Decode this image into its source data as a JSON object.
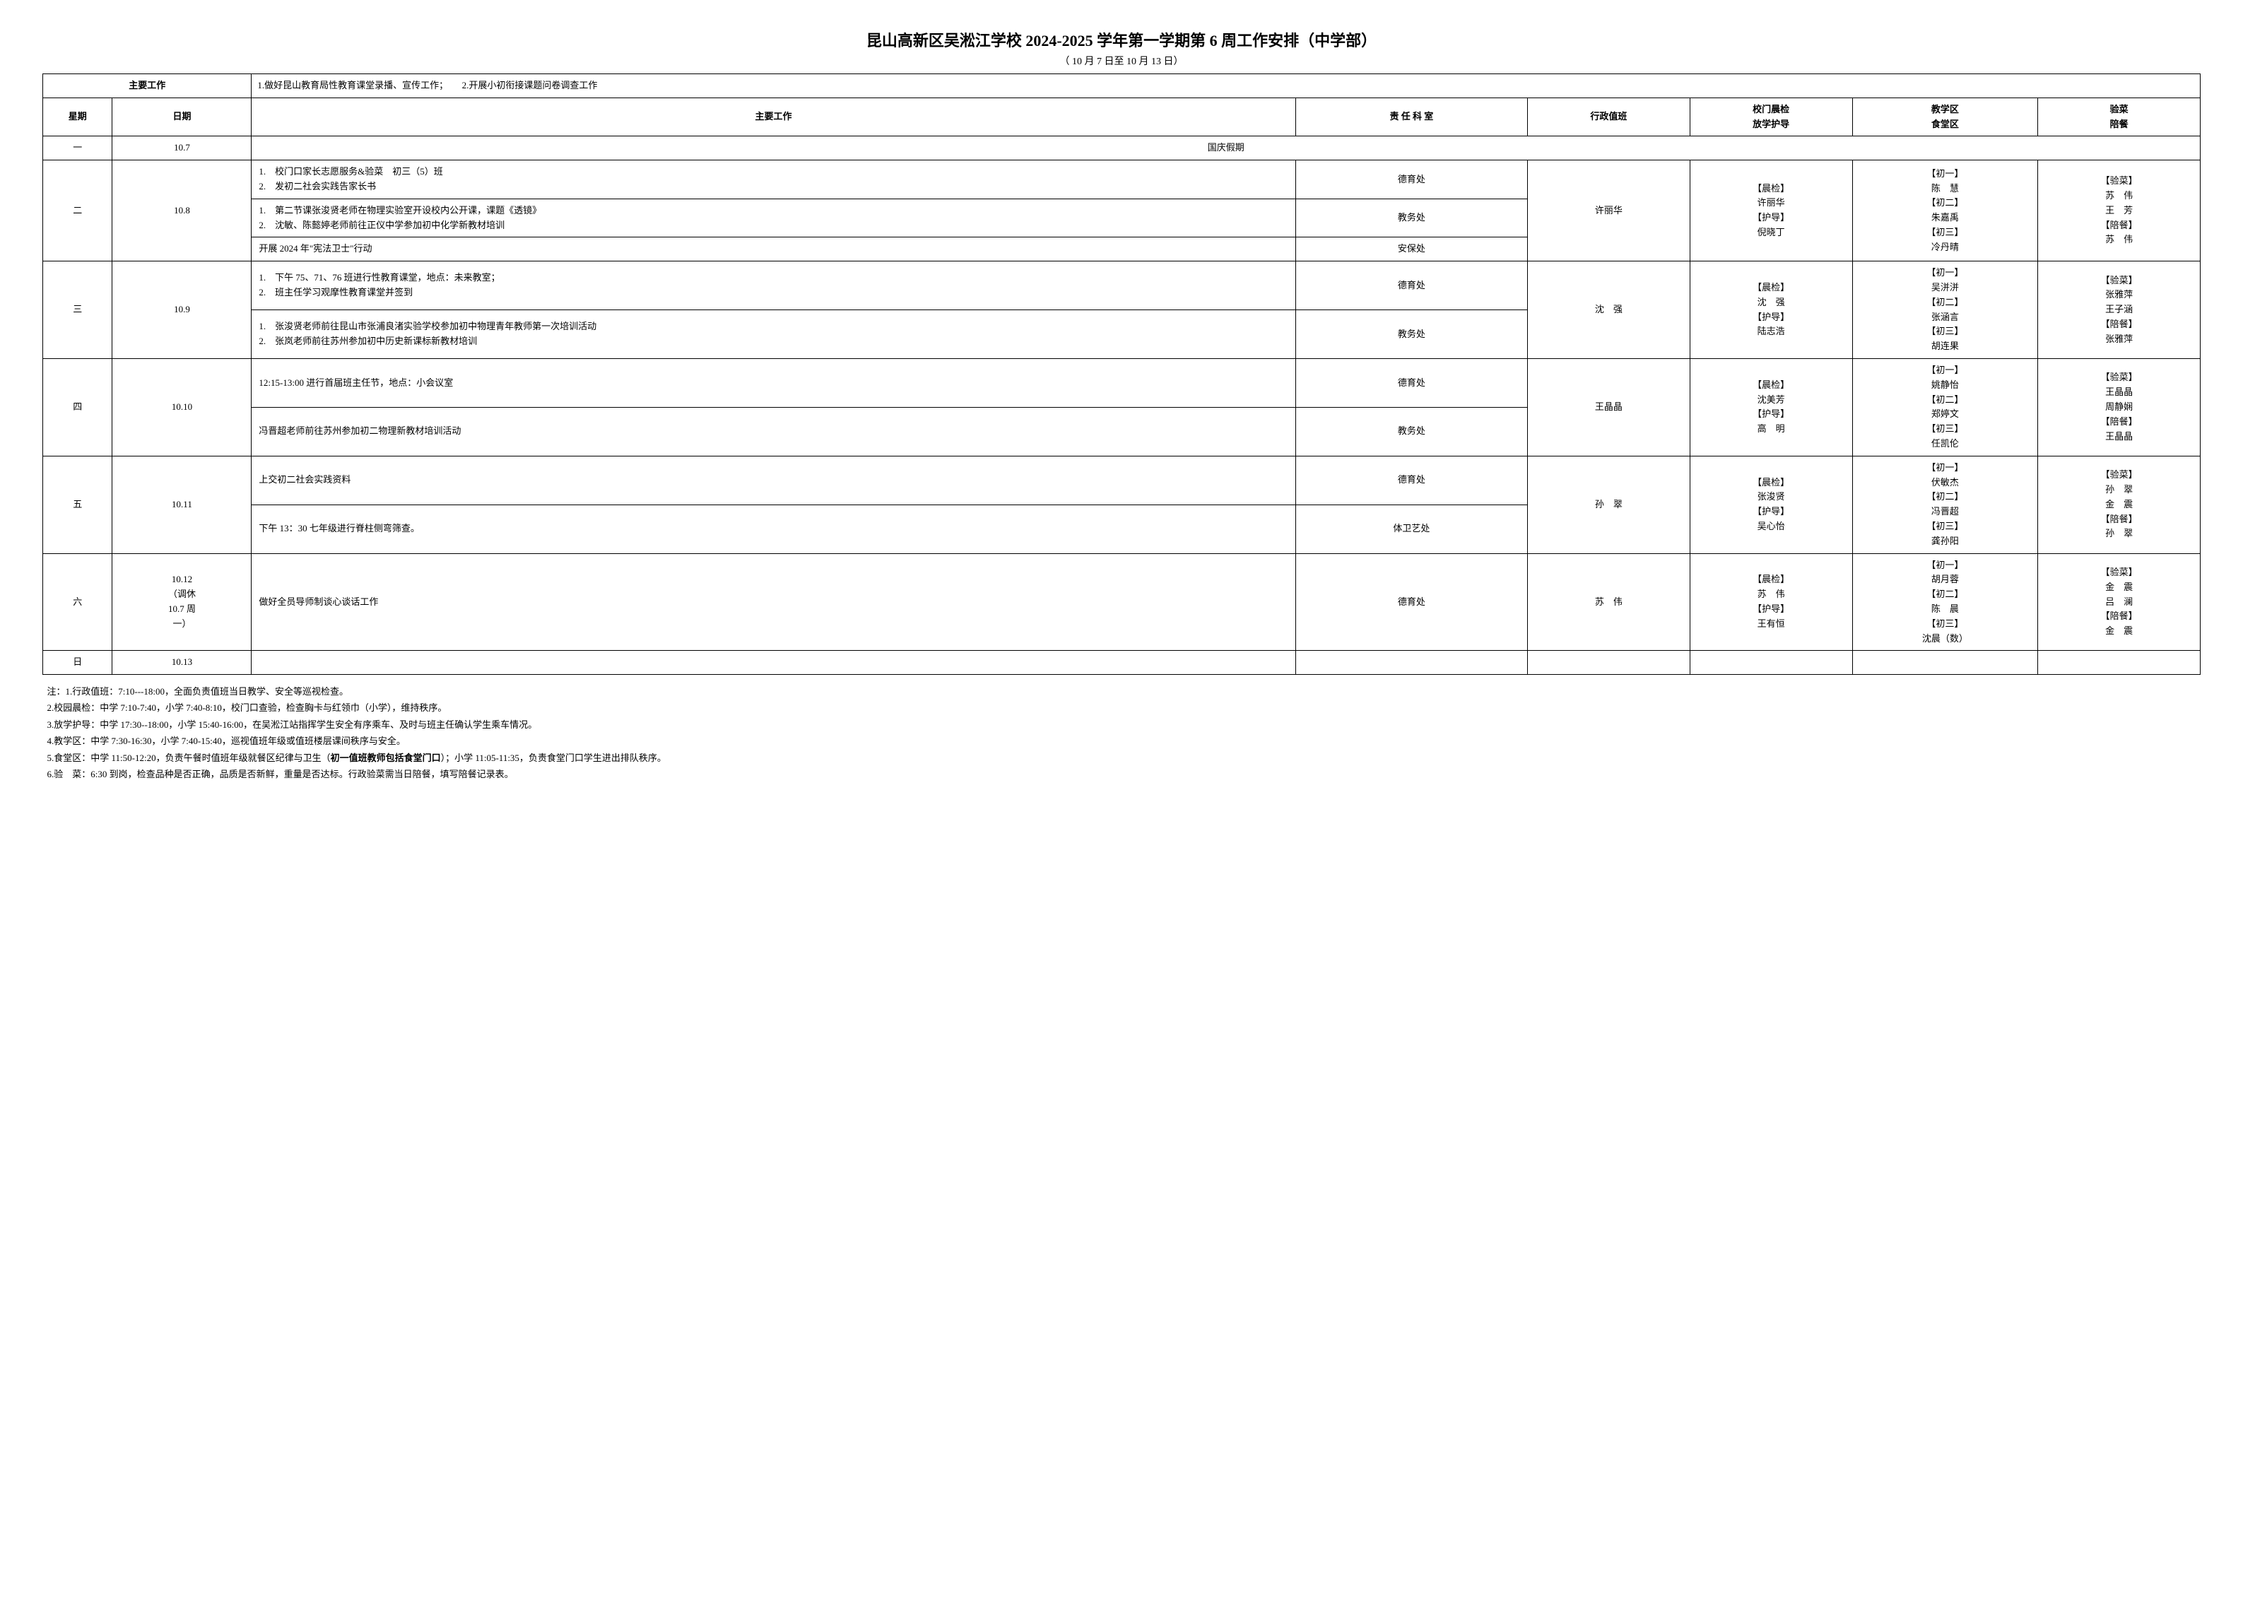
{
  "title": "昆山高新区吴淞江学校 2024-2025 学年第一学期第  6  周工作安排（中学部）",
  "subtitle": "（ 10 月 7 日至 10 月 13 日）",
  "main_work_label": "主要工作",
  "main_work_content": "1.做好昆山教育局性教育课堂录播、宣传工作；　　2.开展小初衔接课题问卷调查工作",
  "headers": {
    "weekday": "星期",
    "date": "日期",
    "work": "主要工作",
    "dept": "责 任 科 室",
    "duty": "行政值班",
    "gate": "校门晨检\n放学护导",
    "zone": "教学区\n食堂区",
    "meal": "验菜\n陪餐"
  },
  "rows": [
    {
      "weekday": "一",
      "date": "10.7",
      "holiday": "国庆假期"
    },
    {
      "weekday": "二",
      "date": "10.8",
      "duty": "许丽华",
      "gate": "【晨检】\n许丽华\n【护导】\n倪晓丁",
      "zone": "【初一】\n陈　慧\n【初二】\n朱嘉禹\n【初三】\n冷丹晴",
      "meal": "【验菜】\n苏　伟\n王　芳\n【陪餐】\n苏　伟",
      "tasks": [
        {
          "items": [
            "1.　校门口家长志愿服务&验菜　初三（5）班",
            "2.　发初二社会实践告家长书"
          ],
          "dept": "德育处"
        },
        {
          "items": [
            "1.　第二节课张浚贤老师在物理实验室开设校内公开课，课题《透镜》",
            "2.　沈敏、陈懿婷老师前往正仪中学参加初中化学新教材培训"
          ],
          "dept": "教务处"
        },
        {
          "items": [
            "开展 2024 年\"宪法卫士\"行动"
          ],
          "dept": "安保处"
        }
      ]
    },
    {
      "weekday": "三",
      "date": "10.9",
      "duty": "沈　强",
      "gate": "【晨检】\n沈　强\n【护导】\n陆志浩",
      "zone": "【初一】\n吴洴洴\n【初二】\n张涵言\n【初三】\n胡连果",
      "meal": "【验菜】\n张雅萍\n王子涵\n【陪餐】\n张雅萍",
      "tasks": [
        {
          "items": [
            "1.　下午 75、71、76 班进行性教育课堂，地点：未来教室；",
            "2.　班主任学习观摩性教育课堂并签到"
          ],
          "dept": "德育处"
        },
        {
          "items": [
            "1.　张浚贤老师前往昆山市张浦良渚实验学校参加初中物理青年教师第一次培训活动",
            "2.　张岚老师前往苏州参加初中历史新课标新教材培训"
          ],
          "dept": "教务处"
        }
      ]
    },
    {
      "weekday": "四",
      "date": "10.10",
      "duty": "王晶晶",
      "gate": "【晨检】\n沈美芳\n【护导】\n高　明",
      "zone": "【初一】\n姚静怡\n【初二】\n郑婷文\n【初三】\n任凯伦",
      "meal": "【验菜】\n王晶晶\n周静娴\n【陪餐】\n王晶晶",
      "tasks": [
        {
          "items": [
            "12:15-13:00 进行首届班主任节，地点：小会议室"
          ],
          "dept": "德育处"
        },
        {
          "items": [
            "冯晋超老师前往苏州参加初二物理新教材培训活动"
          ],
          "dept": "教务处"
        }
      ]
    },
    {
      "weekday": "五",
      "date": "10.11",
      "duty": "孙　翠",
      "gate": "【晨检】\n张浚贤\n【护导】\n吴心怡",
      "zone": "【初一】\n伏敏杰\n【初二】\n冯晋超\n【初三】\n龚孙阳",
      "meal": "【验菜】\n孙　翠\n金　震\n【陪餐】\n孙　翠",
      "tasks": [
        {
          "items": [
            "上交初二社会实践资料"
          ],
          "dept": "德育处"
        },
        {
          "items": [
            "下午 13：30 七年级进行脊柱侧弯筛查。"
          ],
          "dept": "体卫艺处"
        }
      ]
    },
    {
      "weekday": "六",
      "date": "10.12\n（调休\n10.7 周\n一）",
      "duty": "苏　伟",
      "gate": "【晨检】\n苏　伟\n【护导】\n王有恒",
      "zone": "【初一】\n胡月蓉\n【初二】\n陈　晨\n【初三】\n沈晨（数）",
      "meal": "【验菜】\n金　震\n吕　澜\n【陪餐】\n金　震",
      "tasks": [
        {
          "items": [
            "做好全员导师制谈心谈话工作"
          ],
          "dept": "德育处"
        }
      ]
    },
    {
      "weekday": "日",
      "date": "10.13",
      "empty": true
    }
  ],
  "notes": [
    "注：1.行政值班：7:10---18:00，全面负责值班当日教学、安全等巡视检查。",
    "2.校园晨检：中学 7:10-7:40，小学 7:40-8:10，校门口查验，检查胸卡与红领巾（小学），维持秩序。",
    "3.放学护导：中学 17:30--18:00，小学 15:40-16:00，在吴淞江站指挥学生安全有序乘车、及时与班主任确认学生乘车情况。",
    "4.教学区：中学 7:30-16:30，小学 7:40-15:40，巡视值班年级或值班楼层课间秩序与安全。",
    "5.食堂区：中学 11:50-12:20，负责午餐时值班年级就餐区纪律与卫生（初一值班教师包括食堂门口）；小学 11:05-11:35，负责食堂门口学生进出排队秩序。",
    "6.验　菜：6:30 到岗，检查品种是否正确，品质是否新鲜，重量是否达标。行政验菜需当日陪餐，填写陪餐记录表。"
  ],
  "note5_bold": "初一值班教师包括食堂门口"
}
